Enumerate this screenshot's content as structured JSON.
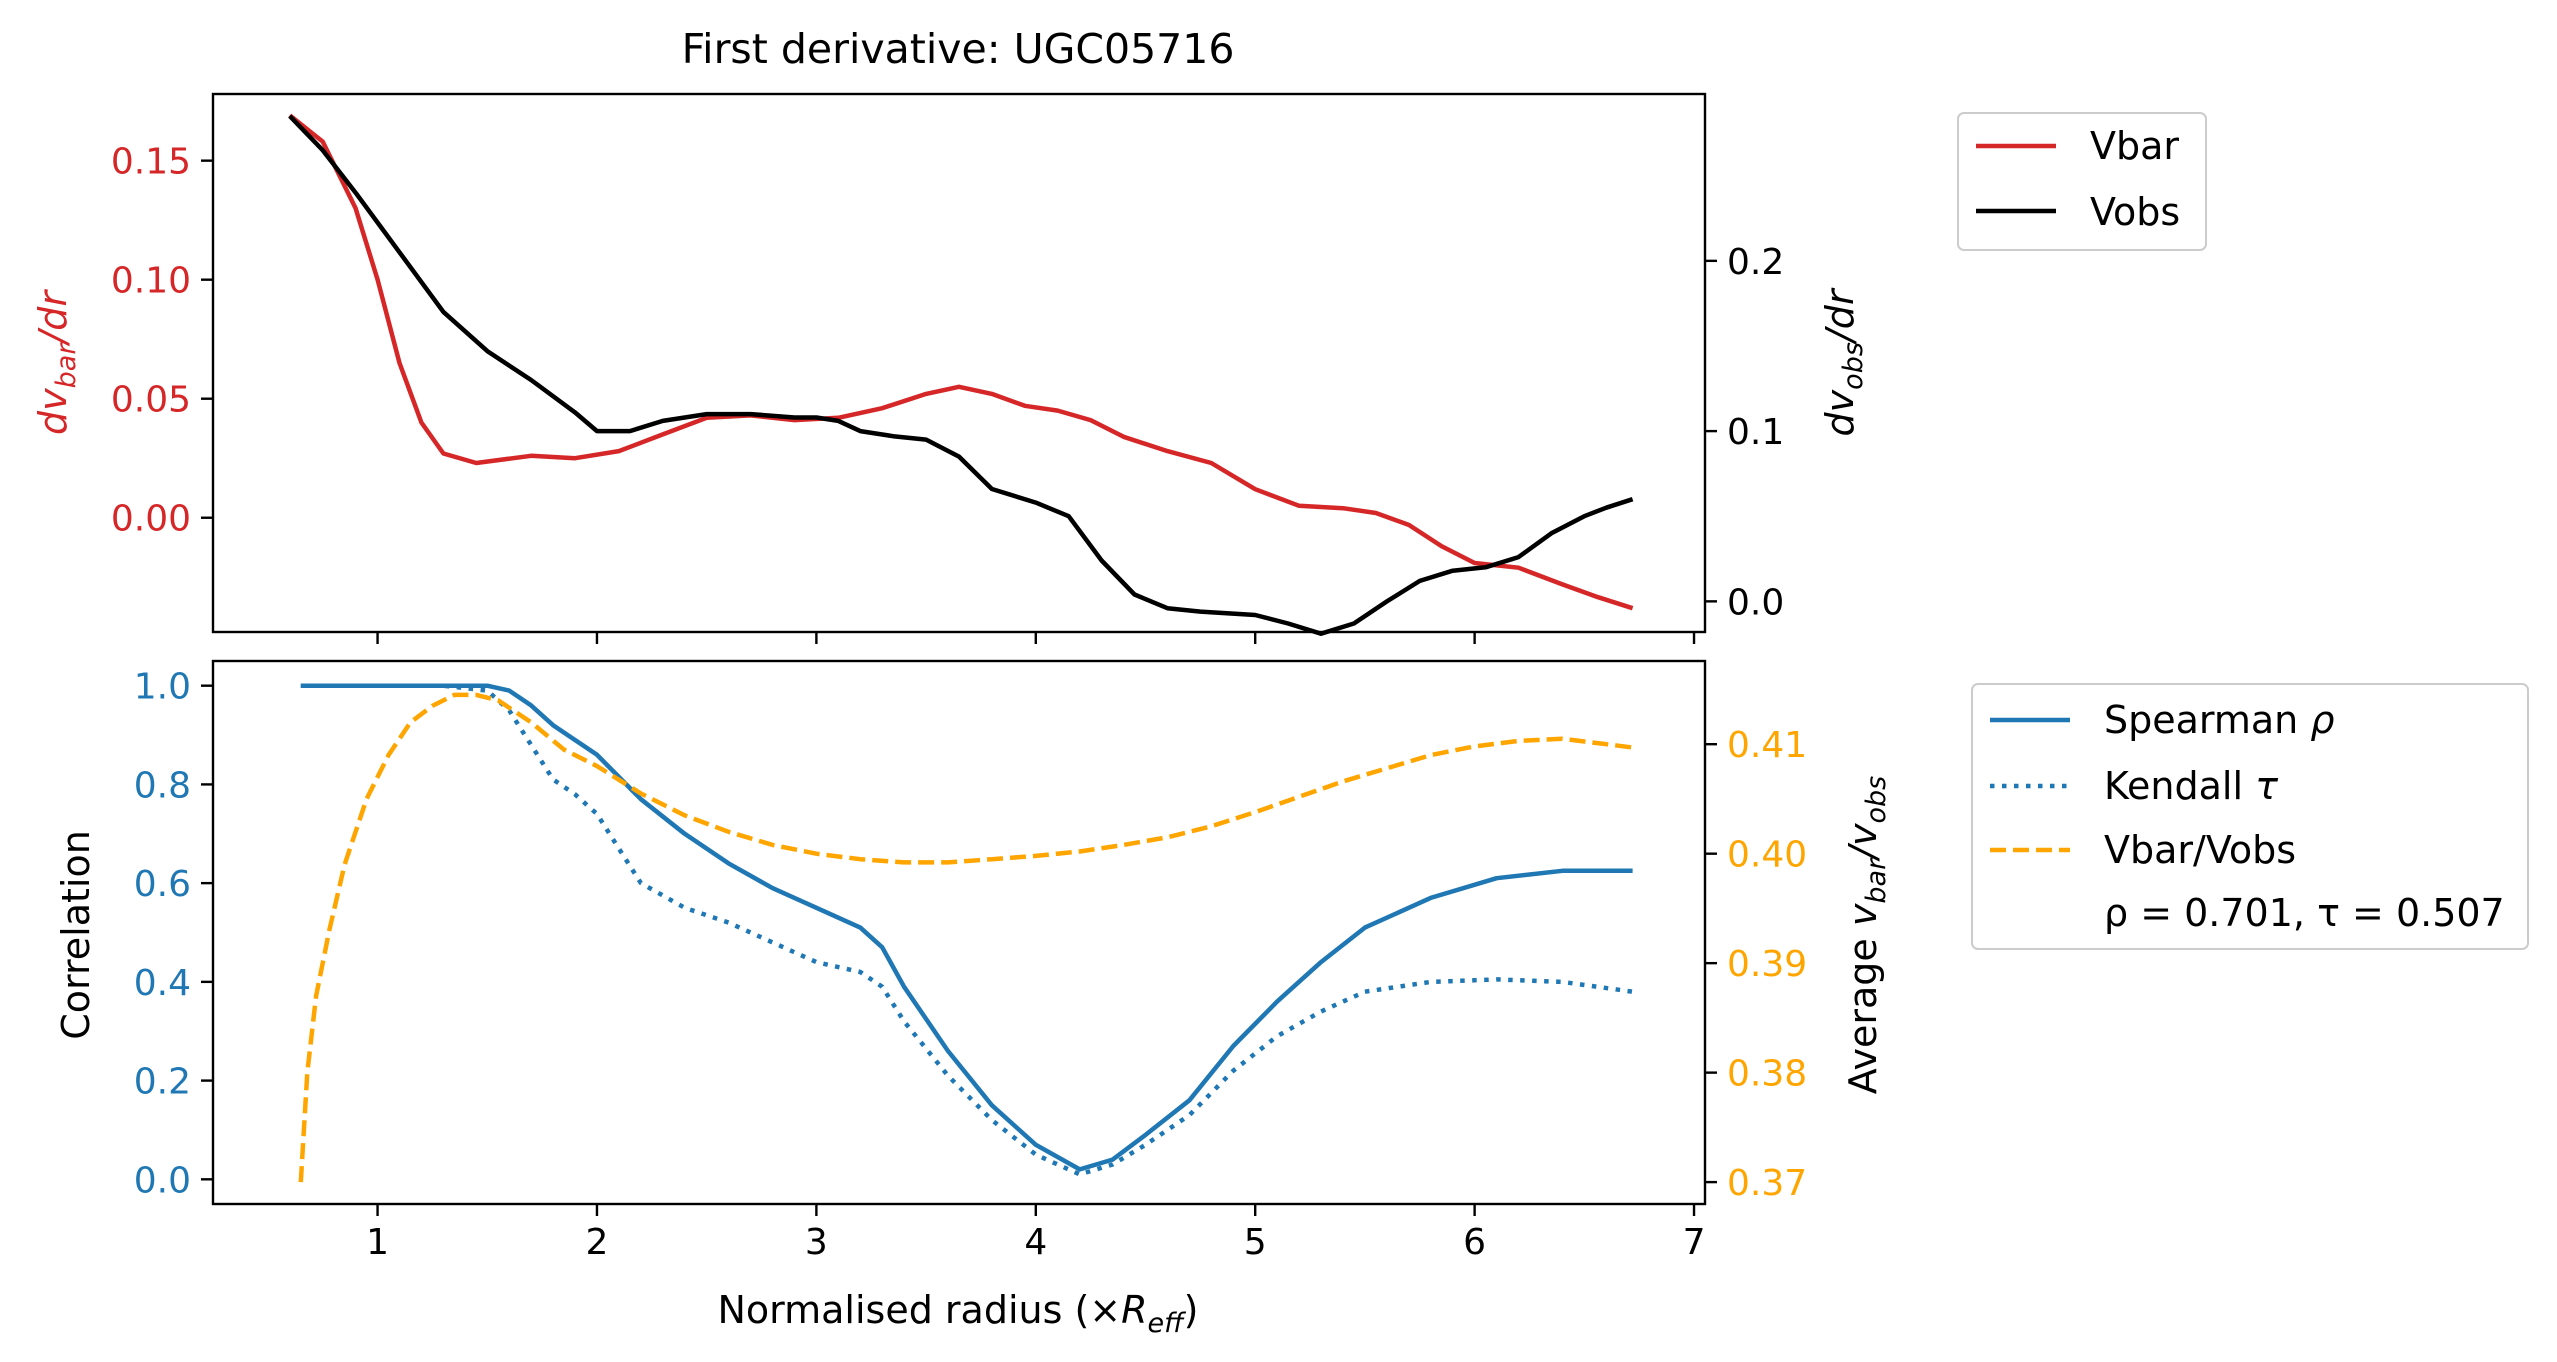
{
  "colors": {
    "vbar": "#d62728",
    "vobs": "#000000",
    "spearman": "#1f77b4",
    "kendall": "#1f77b4",
    "ratio": "#ffa500",
    "axis": "#000000"
  },
  "chart_data": [
    {
      "type": "line",
      "title": "First derivative: UGC05716",
      "xlim": [
        0.25,
        7.05
      ],
      "ylim_left": [
        -0.048,
        0.178
      ],
      "ylim_right": [
        -0.018,
        0.298
      ],
      "ylabel_left": {
        "base": "dv",
        "sub": "bar",
        "tail": "/dr"
      },
      "ylabel_right": {
        "base": "dv",
        "sub": "obs",
        "tail": "/dr"
      },
      "yticks_left": [
        {
          "v": 0.15,
          "label": "0.15"
        },
        {
          "v": 0.1,
          "label": "0.10"
        },
        {
          "v": 0.05,
          "label": "0.05"
        },
        {
          "v": 0.0,
          "label": "0.00"
        }
      ],
      "yticks_right": [
        {
          "v": 0.2,
          "label": "0.2"
        },
        {
          "v": 0.1,
          "label": "0.1"
        },
        {
          "v": 0.0,
          "label": "0.0"
        }
      ],
      "xticks": [
        1,
        2,
        3,
        4,
        5,
        6,
        7
      ],
      "legend_position": "outside-right",
      "legend": [
        {
          "label": "Vbar",
          "series": "vbar"
        },
        {
          "label": "Vobs",
          "series": "vobs"
        }
      ],
      "series": [
        {
          "name": "Vbar",
          "id": "vbar",
          "axis": "left",
          "style": "solid",
          "points": [
            [
              0.6,
              0.169
            ],
            [
              0.75,
              0.158
            ],
            [
              0.9,
              0.13
            ],
            [
              1.0,
              0.1
            ],
            [
              1.1,
              0.065
            ],
            [
              1.2,
              0.04
            ],
            [
              1.3,
              0.027
            ],
            [
              1.45,
              0.023
            ],
            [
              1.7,
              0.026
            ],
            [
              1.9,
              0.025
            ],
            [
              2.1,
              0.028
            ],
            [
              2.3,
              0.035
            ],
            [
              2.5,
              0.042
            ],
            [
              2.7,
              0.043
            ],
            [
              2.9,
              0.041
            ],
            [
              3.1,
              0.042
            ],
            [
              3.3,
              0.046
            ],
            [
              3.5,
              0.052
            ],
            [
              3.65,
              0.055
            ],
            [
              3.8,
              0.052
            ],
            [
              3.95,
              0.047
            ],
            [
              4.1,
              0.045
            ],
            [
              4.25,
              0.041
            ],
            [
              4.4,
              0.034
            ],
            [
              4.6,
              0.028
            ],
            [
              4.8,
              0.023
            ],
            [
              5.0,
              0.012
            ],
            [
              5.2,
              0.005
            ],
            [
              5.4,
              0.004
            ],
            [
              5.55,
              0.002
            ],
            [
              5.7,
              -0.003
            ],
            [
              5.85,
              -0.012
            ],
            [
              6.0,
              -0.019
            ],
            [
              6.2,
              -0.021
            ],
            [
              6.4,
              -0.028
            ],
            [
              6.55,
              -0.033
            ],
            [
              6.72,
              -0.038
            ]
          ]
        },
        {
          "name": "Vobs",
          "id": "vobs",
          "axis": "right",
          "style": "solid",
          "points": [
            [
              0.6,
              0.285
            ],
            [
              0.75,
              0.265
            ],
            [
              0.9,
              0.24
            ],
            [
              1.1,
              0.205
            ],
            [
              1.3,
              0.17
            ],
            [
              1.5,
              0.147
            ],
            [
              1.7,
              0.13
            ],
            [
              1.9,
              0.111
            ],
            [
              2.0,
              0.1
            ],
            [
              2.15,
              0.1
            ],
            [
              2.3,
              0.106
            ],
            [
              2.5,
              0.11
            ],
            [
              2.7,
              0.11
            ],
            [
              2.9,
              0.108
            ],
            [
              3.0,
              0.108
            ],
            [
              3.1,
              0.106
            ],
            [
              3.2,
              0.1
            ],
            [
              3.35,
              0.097
            ],
            [
              3.5,
              0.095
            ],
            [
              3.65,
              0.085
            ],
            [
              3.8,
              0.066
            ],
            [
              4.0,
              0.058
            ],
            [
              4.15,
              0.05
            ],
            [
              4.3,
              0.024
            ],
            [
              4.45,
              0.004
            ],
            [
              4.6,
              -0.004
            ],
            [
              4.75,
              -0.006
            ],
            [
              5.0,
              -0.008
            ],
            [
              5.15,
              -0.013
            ],
            [
              5.3,
              -0.019
            ],
            [
              5.45,
              -0.013
            ],
            [
              5.6,
              0.0
            ],
            [
              5.75,
              0.012
            ],
            [
              5.9,
              0.018
            ],
            [
              6.05,
              0.02
            ],
            [
              6.2,
              0.026
            ],
            [
              6.35,
              0.04
            ],
            [
              6.5,
              0.05
            ],
            [
              6.6,
              0.055
            ],
            [
              6.72,
              0.06
            ]
          ]
        }
      ]
    },
    {
      "type": "line",
      "xlabel": {
        "base": "Normalised radius (×",
        "sym": "R",
        "sub": "eff",
        "tail": ")"
      },
      "xlim": [
        0.25,
        7.05
      ],
      "ylim_left": [
        -0.05,
        1.05
      ],
      "ylim_right": [
        0.368,
        0.4176
      ],
      "ylabel_left": "Correlation",
      "ylabel_right": {
        "base": "Average ",
        "v1": "v",
        "s1": "bar",
        "mid": "/",
        "v2": "v",
        "s2": "obs"
      },
      "yticks_left": [
        {
          "v": 1.0,
          "label": "1.0"
        },
        {
          "v": 0.8,
          "label": "0.8"
        },
        {
          "v": 0.6,
          "label": "0.6"
        },
        {
          "v": 0.4,
          "label": "0.4"
        },
        {
          "v": 0.2,
          "label": "0.2"
        },
        {
          "v": 0.0,
          "label": "0.0"
        }
      ],
      "yticks_right": [
        {
          "v": 0.41,
          "label": "0.41"
        },
        {
          "v": 0.4,
          "label": "0.40"
        },
        {
          "v": 0.39,
          "label": "0.39"
        },
        {
          "v": 0.38,
          "label": "0.38"
        },
        {
          "v": 0.37,
          "label": "0.37"
        }
      ],
      "xticks": [
        {
          "v": 1,
          "label": "1"
        },
        {
          "v": 2,
          "label": "2"
        },
        {
          "v": 3,
          "label": "3"
        },
        {
          "v": 4,
          "label": "4"
        },
        {
          "v": 5,
          "label": "5"
        },
        {
          "v": 6,
          "label": "6"
        },
        {
          "v": 7,
          "label": "7"
        }
      ],
      "legend_position": "outside-right",
      "legend": [
        {
          "label": "Spearman ",
          "greek": "ρ",
          "series": "spearman"
        },
        {
          "label": "Kendall ",
          "greek": "τ",
          "series": "kendall"
        },
        {
          "label": "Vbar/Vobs",
          "greek": "",
          "series": "ratio"
        }
      ],
      "annotation": "ρ = 0.701, τ = 0.507",
      "series": [
        {
          "name": "Spearman ρ",
          "id": "spearman",
          "axis": "left",
          "style": "solid",
          "points": [
            [
              0.65,
              1.0
            ],
            [
              1.0,
              1.0
            ],
            [
              1.3,
              1.0
            ],
            [
              1.5,
              1.0
            ],
            [
              1.6,
              0.99
            ],
            [
              1.7,
              0.96
            ],
            [
              1.8,
              0.92
            ],
            [
              1.9,
              0.89
            ],
            [
              2.0,
              0.86
            ],
            [
              2.2,
              0.77
            ],
            [
              2.4,
              0.7
            ],
            [
              2.6,
              0.64
            ],
            [
              2.8,
              0.59
            ],
            [
              3.0,
              0.55
            ],
            [
              3.2,
              0.51
            ],
            [
              3.3,
              0.47
            ],
            [
              3.4,
              0.39
            ],
            [
              3.6,
              0.26
            ],
            [
              3.8,
              0.15
            ],
            [
              4.0,
              0.07
            ],
            [
              4.2,
              0.02
            ],
            [
              4.35,
              0.04
            ],
            [
              4.5,
              0.09
            ],
            [
              4.7,
              0.16
            ],
            [
              4.9,
              0.27
            ],
            [
              5.1,
              0.36
            ],
            [
              5.3,
              0.44
            ],
            [
              5.5,
              0.51
            ],
            [
              5.8,
              0.57
            ],
            [
              6.1,
              0.61
            ],
            [
              6.4,
              0.625
            ],
            [
              6.72,
              0.625
            ]
          ]
        },
        {
          "name": "Kendall τ",
          "id": "kendall",
          "axis": "left",
          "style": "dotted",
          "points": [
            [
              0.65,
              1.0
            ],
            [
              1.0,
              1.0
            ],
            [
              1.3,
              1.0
            ],
            [
              1.5,
              0.99
            ],
            [
              1.6,
              0.95
            ],
            [
              1.7,
              0.88
            ],
            [
              1.8,
              0.81
            ],
            [
              1.9,
              0.78
            ],
            [
              2.0,
              0.74
            ],
            [
              2.1,
              0.67
            ],
            [
              2.2,
              0.6
            ],
            [
              2.4,
              0.55
            ],
            [
              2.6,
              0.52
            ],
            [
              2.8,
              0.48
            ],
            [
              3.0,
              0.44
            ],
            [
              3.2,
              0.42
            ],
            [
              3.3,
              0.39
            ],
            [
              3.4,
              0.32
            ],
            [
              3.6,
              0.21
            ],
            [
              3.8,
              0.12
            ],
            [
              4.0,
              0.05
            ],
            [
              4.2,
              0.01
            ],
            [
              4.35,
              0.03
            ],
            [
              4.5,
              0.07
            ],
            [
              4.7,
              0.13
            ],
            [
              4.9,
              0.22
            ],
            [
              5.1,
              0.29
            ],
            [
              5.3,
              0.34
            ],
            [
              5.5,
              0.38
            ],
            [
              5.8,
              0.4
            ],
            [
              6.1,
              0.405
            ],
            [
              6.4,
              0.4
            ],
            [
              6.72,
              0.38
            ]
          ]
        },
        {
          "name": "Vbar/Vobs",
          "id": "ratio",
          "axis": "right",
          "style": "dashed",
          "points": [
            [
              0.65,
              0.37
            ],
            [
              0.68,
              0.38
            ],
            [
              0.72,
              0.387
            ],
            [
              0.78,
              0.393
            ],
            [
              0.85,
              0.399
            ],
            [
              0.95,
              0.405
            ],
            [
              1.05,
              0.409
            ],
            [
              1.15,
              0.412
            ],
            [
              1.25,
              0.4135
            ],
            [
              1.35,
              0.4145
            ],
            [
              1.45,
              0.4145
            ],
            [
              1.55,
              0.414
            ],
            [
              1.7,
              0.412
            ],
            [
              1.85,
              0.4095
            ],
            [
              2.0,
              0.408
            ],
            [
              2.2,
              0.4055
            ],
            [
              2.4,
              0.4035
            ],
            [
              2.6,
              0.402
            ],
            [
              2.8,
              0.4008
            ],
            [
              3.0,
              0.4
            ],
            [
              3.2,
              0.3995
            ],
            [
              3.4,
              0.3992
            ],
            [
              3.6,
              0.3992
            ],
            [
              3.8,
              0.3995
            ],
            [
              4.0,
              0.3998
            ],
            [
              4.2,
              0.4002
            ],
            [
              4.4,
              0.4008
            ],
            [
              4.6,
              0.4015
            ],
            [
              4.8,
              0.4025
            ],
            [
              5.0,
              0.4038
            ],
            [
              5.2,
              0.4052
            ],
            [
              5.4,
              0.4066
            ],
            [
              5.6,
              0.4078
            ],
            [
              5.8,
              0.409
            ],
            [
              6.0,
              0.4098
            ],
            [
              6.2,
              0.4103
            ],
            [
              6.4,
              0.4105
            ],
            [
              6.72,
              0.4097
            ]
          ]
        }
      ]
    }
  ]
}
